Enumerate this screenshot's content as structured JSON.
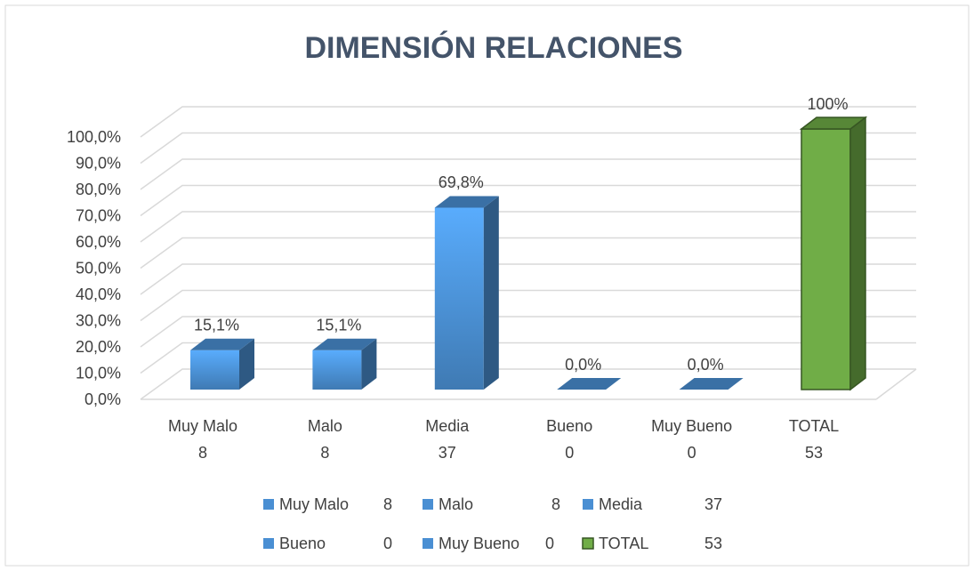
{
  "chart_data": {
    "type": "bar3d",
    "title": "DIMENSIÓN RELACIONES",
    "categories": [
      "Muy Malo",
      "Malo",
      "Media",
      "Bueno",
      "Muy Bueno",
      "TOTAL"
    ],
    "counts": [
      8,
      8,
      37,
      0,
      0,
      53
    ],
    "values": [
      15.1,
      15.1,
      69.8,
      0,
      0,
      100
    ],
    "value_labels": [
      "15,1%",
      "15,1%",
      "69,8%",
      "0,0%",
      "0,0%",
      "100%"
    ],
    "colors": [
      "#4a8fd3",
      "#4a8fd3",
      "#4a8fd3",
      "#4a8fd3",
      "#4a8fd3",
      "#70ad47"
    ],
    "ylim": [
      0,
      100
    ],
    "yticks": [
      {
        "value": 0,
        "label": "0,0%"
      },
      {
        "value": 10,
        "label": "10,0%"
      },
      {
        "value": 20,
        "label": "20,0%"
      },
      {
        "value": 30,
        "label": "30,0%"
      },
      {
        "value": 40,
        "label": "40,0%"
      },
      {
        "value": 50,
        "label": "50,0%"
      },
      {
        "value": 60,
        "label": "60,0%"
      },
      {
        "value": 70,
        "label": "70,0%"
      },
      {
        "value": 80,
        "label": "80,0%"
      },
      {
        "value": 90,
        "label": "90,0%"
      },
      {
        "value": 100,
        "label": "100,0%"
      }
    ],
    "grid": true,
    "legend": "bottom"
  }
}
